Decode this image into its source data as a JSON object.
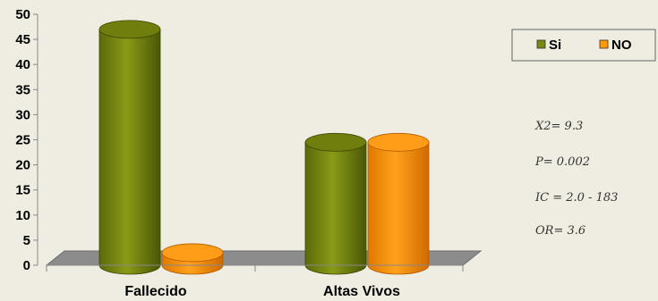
{
  "chart_data": {
    "type": "bar",
    "style": "3d-cylinder",
    "categories": [
      "Fallecido",
      "Altas Vivos"
    ],
    "series": [
      {
        "name": "Si",
        "color": "#7a8a10",
        "values": [
          47,
          24.5
        ]
      },
      {
        "name": "NO",
        "color": "#ff9900",
        "values": [
          2.5,
          24.5
        ]
      }
    ],
    "ylim": [
      0,
      50
    ],
    "yticks": [
      "0",
      "5",
      "10",
      "15",
      "20",
      "25",
      "30",
      "35",
      "40",
      "45",
      "50"
    ],
    "grid": false,
    "legend_position": "top-right",
    "title": "",
    "xlabel": "",
    "ylabel": ""
  },
  "stats": {
    "x2": "X2= 9.3",
    "p": "P= 0.002",
    "ic": "IC = 2.0 - 183",
    "or": "OR= 3.6"
  }
}
